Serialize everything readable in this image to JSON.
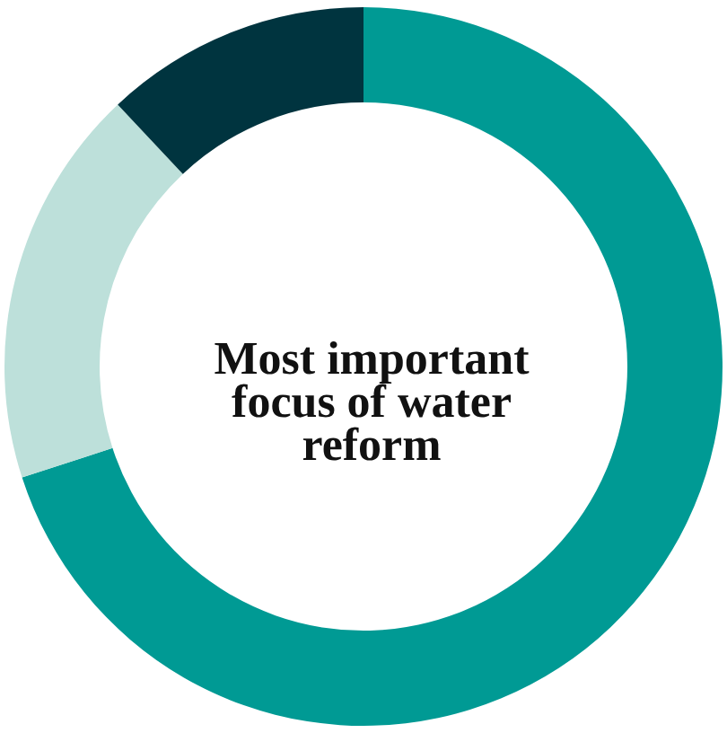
{
  "chart_data": {
    "type": "donut",
    "title": "Most important focus of water reform",
    "categories": [
      null,
      null,
      null
    ],
    "values": [
      70,
      18,
      12
    ],
    "colors": [
      "#009a94",
      "#bde0da",
      "#00343f"
    ]
  }
}
